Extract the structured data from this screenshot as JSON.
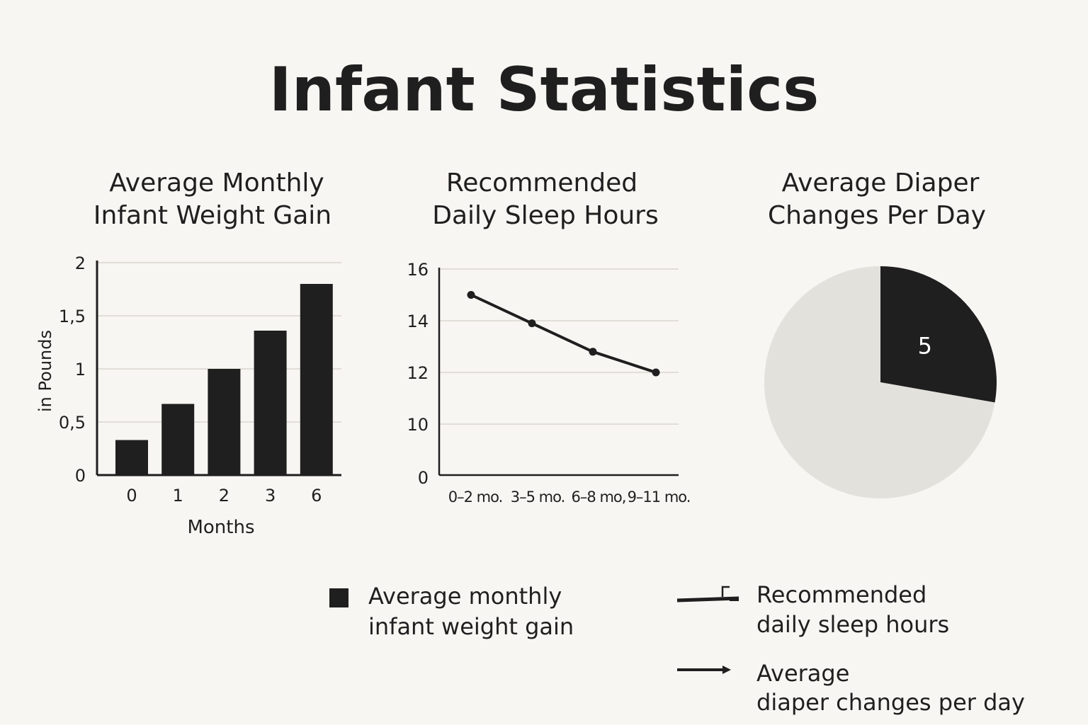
{
  "title": "Infant Statistics",
  "colors": {
    "background": "#f8f6f2",
    "ink": "#1f1f1f",
    "grid": "#d9d6d0",
    "pie_rest": "#e3e1dc"
  },
  "chart_data": [
    {
      "type": "bar",
      "title_lines": [
        "Average Monthly",
        "Infant Weight Gain"
      ],
      "xlabel": "Months",
      "ylabel": "in Pounds",
      "categories": [
        "0",
        "1",
        "2",
        "3",
        "6"
      ],
      "values": [
        0.33,
        0.67,
        1.0,
        1.36,
        1.8
      ],
      "ylim": [
        0,
        2
      ],
      "yticks": [
        0,
        0.5,
        1,
        1.5,
        2
      ],
      "ytick_labels": [
        "0",
        "0,5",
        "1",
        "1,5",
        "2"
      ],
      "grid": true
    },
    {
      "type": "line",
      "title_lines": [
        "Recommended",
        "Daily Sleep Hours"
      ],
      "categories": [
        "0–2 mo.",
        "3–5 mo.",
        "6–8 mo,",
        "9–11 mo."
      ],
      "values": [
        15,
        13.9,
        12.8,
        12
      ],
      "ylim": [
        8,
        16
      ],
      "yticks": [
        10,
        12,
        14,
        16
      ],
      "ytick_labels": [
        "10",
        "12",
        "14",
        "16"
      ],
      "ybase_label": "0",
      "grid": true
    },
    {
      "type": "pie",
      "title_lines": [
        "Average Diaper",
        "Changes Per Day"
      ],
      "slices": [
        {
          "value": 5,
          "label": "5",
          "color": "#1f1f1f"
        },
        {
          "value": 13,
          "label": "",
          "color": "#e3e1dc"
        }
      ]
    }
  ],
  "legend": [
    {
      "icon": "square-icon",
      "lines": [
        "Average monthly",
        "infant weight gain"
      ]
    },
    {
      "icon": "line-icon",
      "lines": [
        "Recommended",
        "daily sleep hours"
      ]
    },
    {
      "icon": "arrow-icon",
      "lines": [
        "Average",
        "diaper changes per day"
      ]
    }
  ]
}
